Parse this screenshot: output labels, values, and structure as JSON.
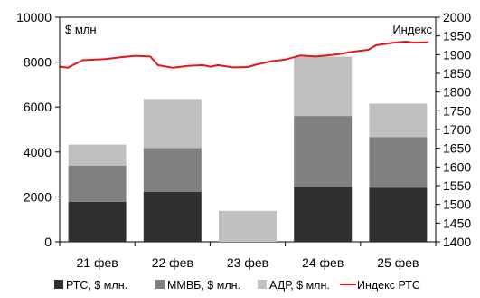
{
  "chart_data": {
    "type": "bar",
    "stacked": true,
    "categories": [
      "21 фев",
      "22 фев",
      "23 фев",
      "24 фев",
      "25 фев"
    ],
    "series": [
      {
        "name": "РТС, $ млн.",
        "type": "bar",
        "axis": "left",
        "color": "#303030",
        "values": [
          1780,
          2230,
          0,
          2450,
          2400
        ]
      },
      {
        "name": "ММВБ, $ млн.",
        "type": "bar",
        "axis": "left",
        "color": "#808080",
        "values": [
          1620,
          1950,
          0,
          3150,
          2270
        ]
      },
      {
        "name": "АДР, $ млн.",
        "type": "bar",
        "axis": "left",
        "color": "#c0c0c0",
        "values": [
          930,
          2180,
          1380,
          2650,
          1480
        ]
      },
      {
        "name": "Индекс РТС",
        "type": "line",
        "axis": "right",
        "color": "#e8141b",
        "x": [
          0,
          0.1,
          0.3,
          0.6,
          0.8,
          1.0,
          1.2,
          1.3,
          1.5,
          1.7,
          1.9,
          2.0,
          2.1,
          2.3,
          2.5,
          2.6,
          2.8,
          3.0,
          3.2,
          3.4,
          3.5,
          3.7,
          3.9,
          4.1,
          4.2,
          4.4,
          4.6,
          4.7,
          4.9
        ],
        "values": [
          1868,
          1865,
          1885,
          1888,
          1893,
          1897,
          1895,
          1872,
          1865,
          1870,
          1872,
          1868,
          1872,
          1866,
          1867,
          1873,
          1882,
          1887,
          1898,
          1895,
          1897,
          1901,
          1908,
          1913,
          1925,
          1931,
          1935,
          1932,
          1933
        ]
      }
    ],
    "y_left": {
      "label": "$ млн",
      "lim": [
        0,
        10000
      ],
      "ticks": [
        0,
        2000,
        4000,
        6000,
        8000,
        10000
      ]
    },
    "y_right": {
      "label": "Индекс",
      "lim": [
        1400,
        2000
      ],
      "ticks": [
        1400,
        1450,
        1500,
        1550,
        1600,
        1650,
        1700,
        1750,
        1800,
        1850,
        1900,
        1950,
        2000
      ]
    },
    "legend": {
      "position": "bottom"
    },
    "grid": false
  }
}
